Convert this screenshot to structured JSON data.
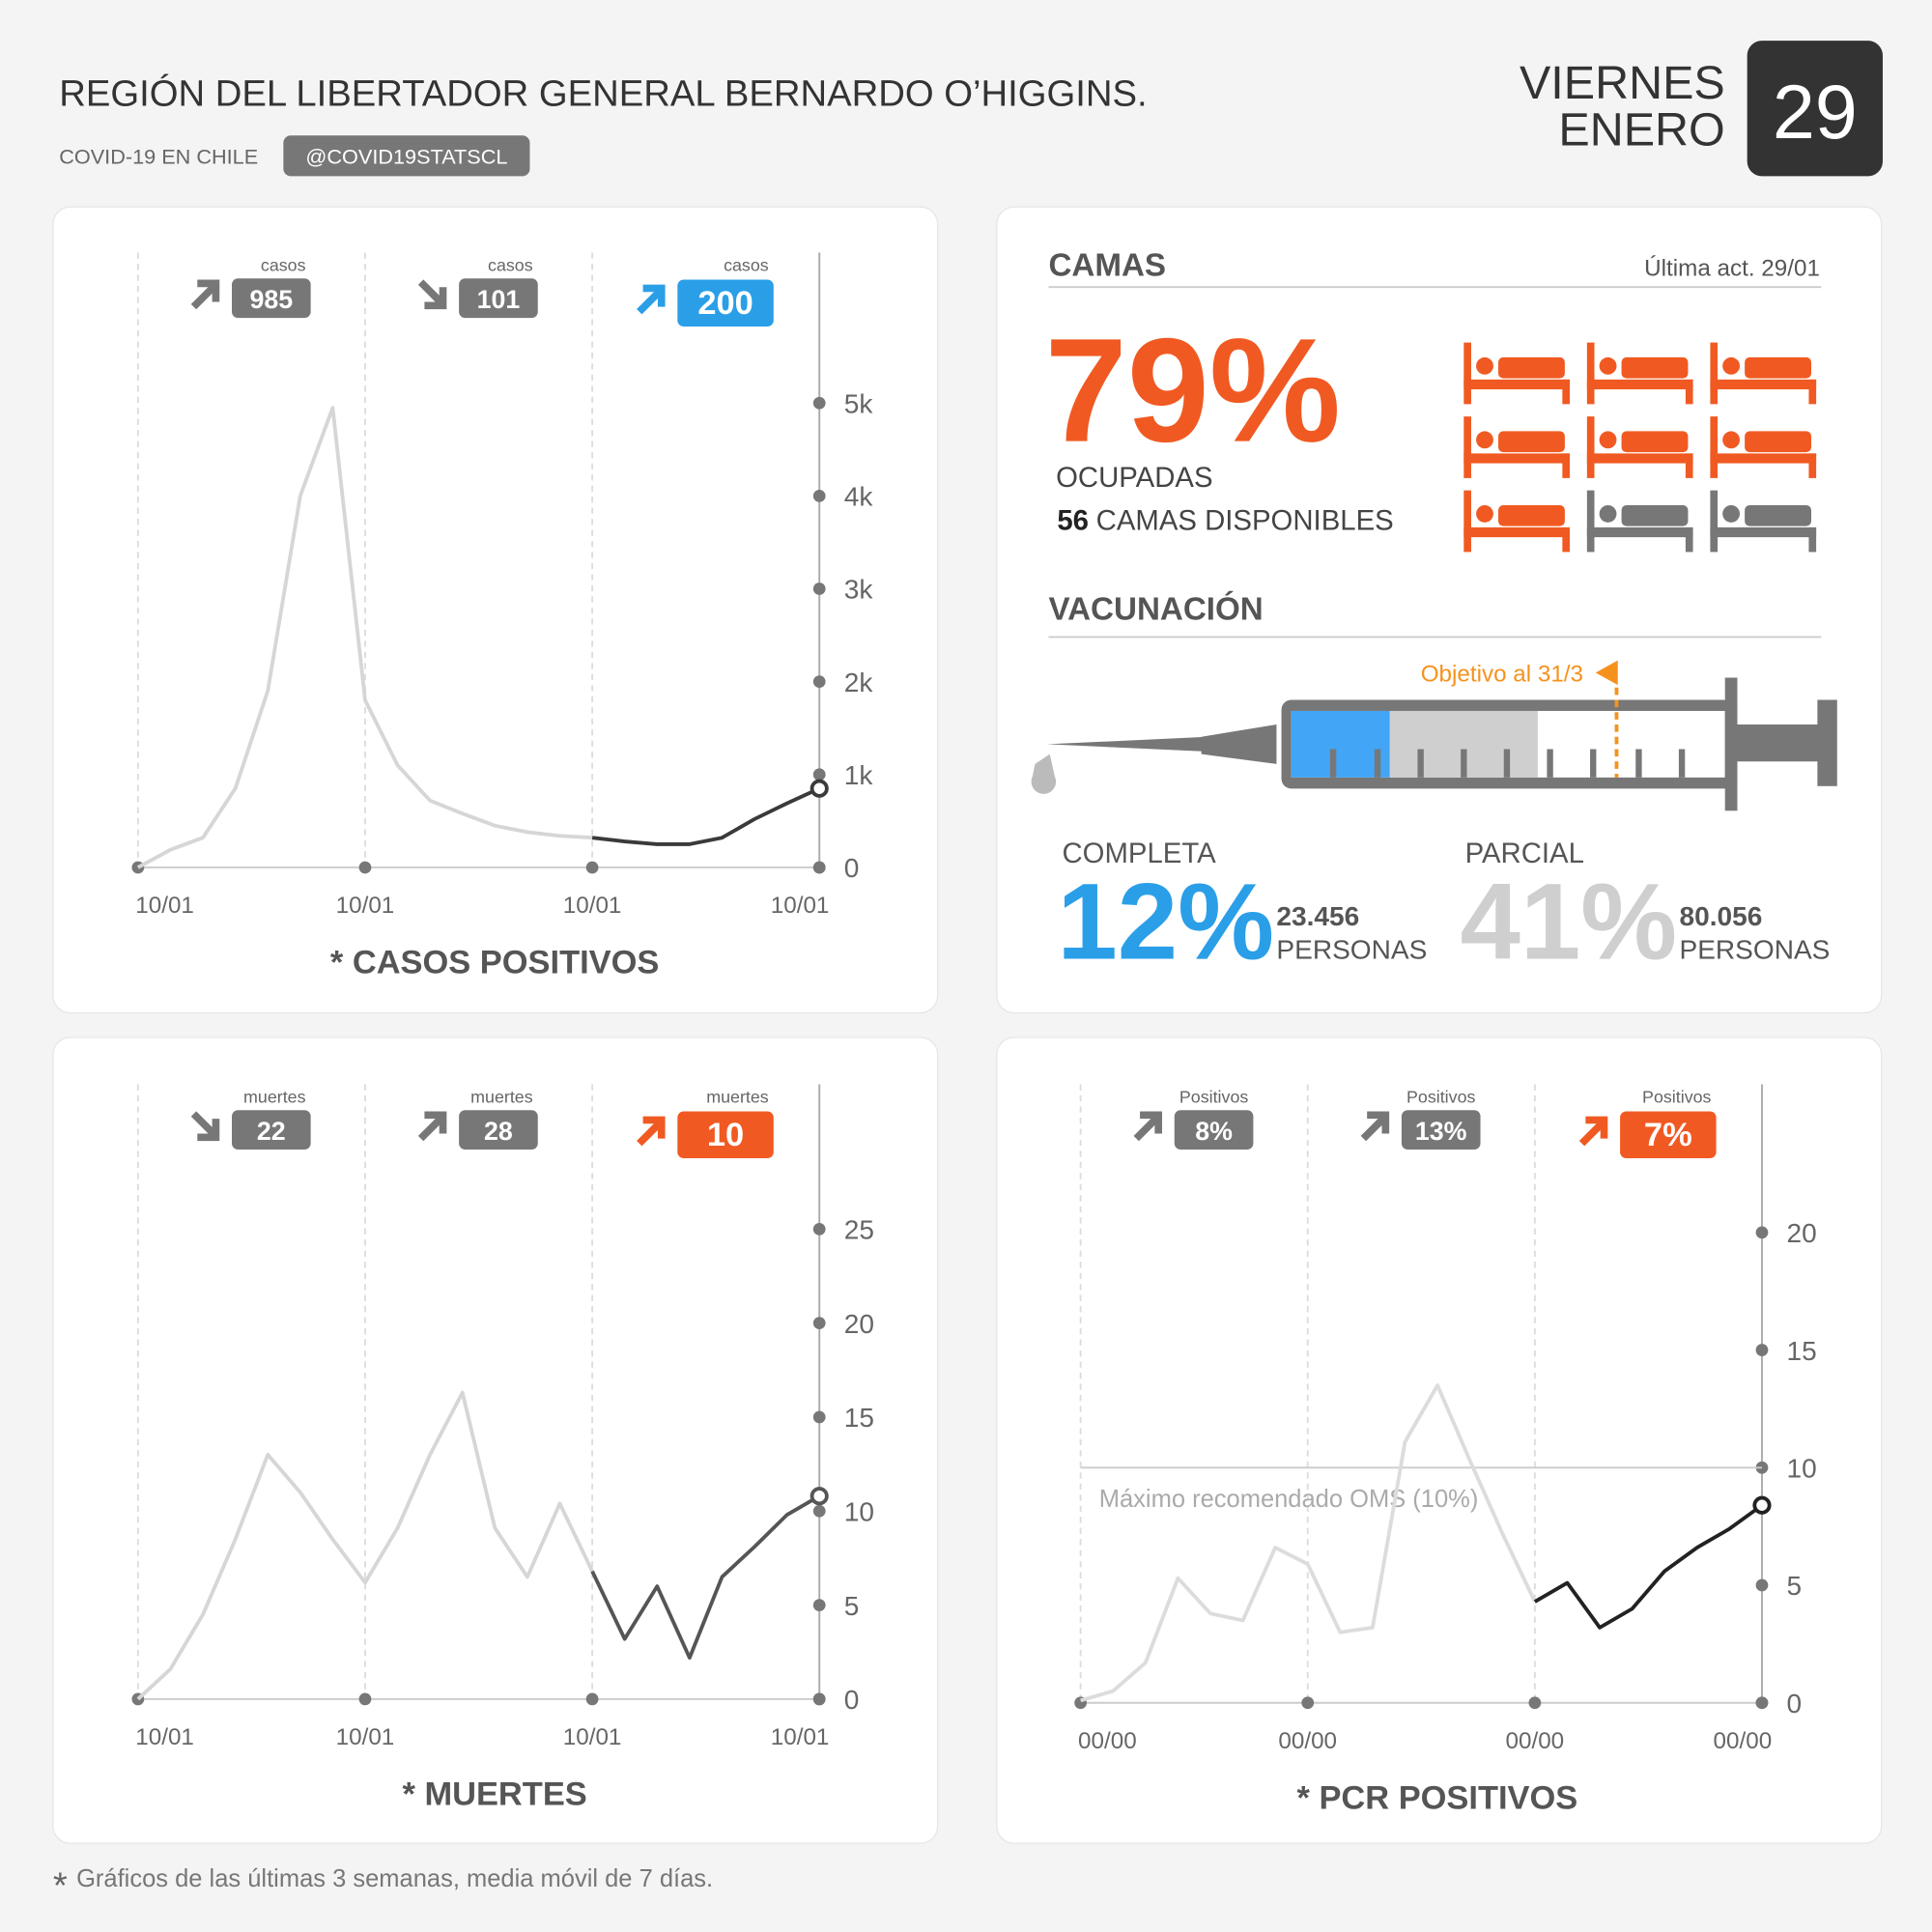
{
  "header": {
    "title": "REGIÓN DEL LIBERTADOR GENERAL BERNARDO O’HIGGINS.",
    "subtitle": "COVID-19 EN CHILE",
    "handle": "@COVID19STATSCL",
    "weekday": "VIERNES",
    "month": "ENERO",
    "day": "29"
  },
  "chart_data": [
    {
      "type": "line",
      "title": "* CASOS POSITIVOS",
      "categories": [
        "10/01",
        null,
        null,
        null,
        null,
        null,
        null,
        "10/01",
        null,
        null,
        null,
        null,
        null,
        null,
        "10/01",
        null,
        null,
        null,
        null,
        null,
        null,
        "10/01"
      ],
      "series": [
        {
          "color": "#d6d6d6",
          "recent_color": "#3a3a3a",
          "values": [
            0,
            190,
            320,
            850,
            1900,
            4000,
            4950,
            1800,
            1100,
            720,
            580,
            450,
            380,
            340,
            320,
            280,
            250,
            250,
            320,
            520,
            690,
            850
          ]
        }
      ],
      "ylim": [
        0,
        6620
      ],
      "yticks": [
        0,
        {
          "value": 1000,
          "label": "1k"
        },
        {
          "value": 2000,
          "label": "2k"
        },
        {
          "value": 3000,
          "label": "3k"
        },
        {
          "value": 4000,
          "label": "4k"
        },
        {
          "value": 5000,
          "label": "5k"
        }
      ],
      "highlight_color": "#2a9fe8",
      "badges": [
        {
          "label": "casos",
          "value": 985,
          "trend": "up"
        },
        {
          "label": "casos",
          "value": 101,
          "trend": "down"
        },
        {
          "label": "casos",
          "value": 200,
          "trend": "up"
        }
      ]
    },
    {
      "type": "line",
      "title": "* MUERTES",
      "categories": [
        "10/01",
        null,
        null,
        null,
        null,
        null,
        null,
        "10/01",
        null,
        null,
        null,
        null,
        null,
        null,
        "10/01",
        null,
        null,
        null,
        null,
        null,
        null,
        "10/01"
      ],
      "series": [
        {
          "color": "#d6d6d6",
          "recent_color": "#555555",
          "values": [
            0,
            1.6,
            4.5,
            8.5,
            13,
            11,
            8.5,
            6.2,
            9.1,
            13,
            16.3,
            9.1,
            6.5,
            10.4,
            6.8,
            3.2,
            6,
            2.2,
            6.5,
            8.1,
            9.8,
            10.8
          ]
        }
      ],
      "ylim": [
        0,
        32.7
      ],
      "yticks": [
        0,
        5,
        10,
        15,
        20,
        25
      ],
      "highlight_color": "#f05a22",
      "badges": [
        {
          "label": "muertes",
          "value": 22,
          "trend": "down"
        },
        {
          "label": "muertes",
          "value": 28,
          "trend": "up"
        },
        {
          "label": "muertes",
          "value": 10,
          "trend": "up"
        }
      ]
    },
    {
      "type": "line",
      "title": "* PCR POSITIVOS",
      "categories": [
        "00/00",
        null,
        null,
        null,
        null,
        null,
        null,
        "00/00",
        null,
        null,
        null,
        null,
        null,
        null,
        "00/00",
        null,
        null,
        null,
        null,
        null,
        null,
        "00/00"
      ],
      "series": [
        {
          "color": "#dcdcdc",
          "recent_color": "#222222",
          "values": [
            0.1,
            0.5,
            1.7,
            5.3,
            3.8,
            3.5,
            6.6,
            5.9,
            3,
            3.2,
            11.1,
            13.5,
            10.3,
            7.2,
            4.3,
            5.1,
            3.2,
            4,
            5.6,
            6.6,
            7.4,
            8.4
          ]
        }
      ],
      "ylim": [
        0,
        26.3
      ],
      "yticks": [
        0,
        5,
        10,
        15,
        20
      ],
      "threshold": 10,
      "threshold_label": "Máximo recomendado OMS (10%)",
      "highlight_color": "#f05a22",
      "badges": [
        {
          "label": "Positivos",
          "value": "8%",
          "trend": "up"
        },
        {
          "label": "Positivos",
          "value": "13%",
          "trend": "up"
        },
        {
          "label": "Positivos",
          "value": "7%",
          "trend": "up"
        }
      ]
    }
  ],
  "camas": {
    "title": "CAMAS",
    "updated": "Última act. 29/01",
    "percent": "79%",
    "occupied_label": "OCUPADAS",
    "available": "56",
    "available_label": "CAMAS DISPONIBLES"
  },
  "vacunacion": {
    "title": "VACUNACIÓN",
    "target": "Objetivo al 31/3",
    "completa": {
      "label": "COMPLETA",
      "percent": "12%",
      "count": "23.456",
      "unit": "PERSONAS"
    },
    "parcial": {
      "label": "PARCIAL",
      "percent": "41%",
      "count": "80.056",
      "unit": "PERSONAS"
    }
  },
  "footnote": {
    "mark": "*",
    "text": "Gráficos de las últimas 3 semanas, media móvil de 7 días."
  }
}
